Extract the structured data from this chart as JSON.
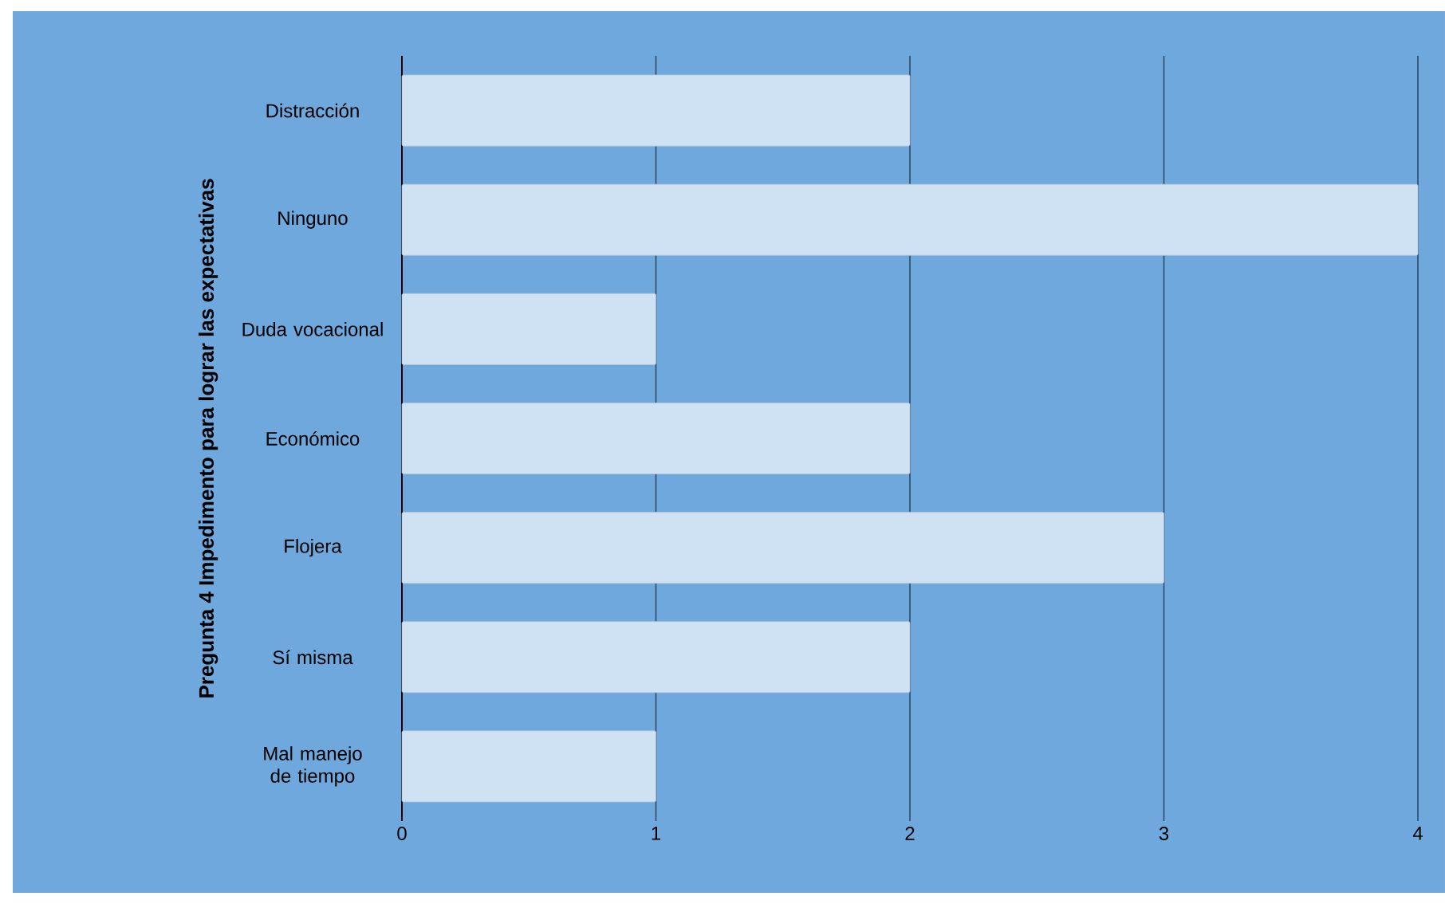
{
  "chart_data": {
    "type": "bar",
    "orientation": "horizontal",
    "ylabel": "Pregunta 4 Impedimento para lograr las expectativas",
    "categories": [
      "Distracción",
      "Ninguno",
      "Duda vocacional",
      "Económico",
      "Flojera",
      "Sí misma",
      "Mal manejo de tiempo"
    ],
    "values": [
      2,
      4,
      1,
      2,
      3,
      2,
      1
    ],
    "color": "#cfe2f3",
    "xlim": [
      0,
      4
    ],
    "xticks": [
      0,
      1,
      2,
      3,
      4
    ],
    "grid": "x"
  }
}
